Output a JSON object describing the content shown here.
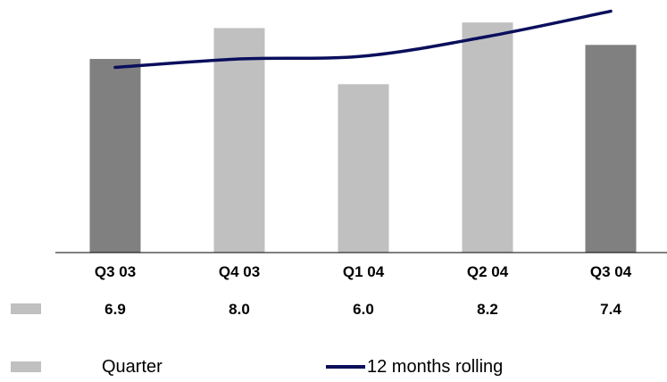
{
  "chart_data": {
    "type": "bar",
    "categories": [
      "Q3 03",
      "Q4 03",
      "Q1 04",
      "Q2 04",
      "Q3 04"
    ],
    "series": [
      {
        "name": "Quarter",
        "values": [
          6.9,
          8.0,
          6.0,
          8.2,
          7.4
        ],
        "bar_colors": [
          "#808080",
          "#c0c0c0",
          "#c0c0c0",
          "#c0c0c0",
          "#808080"
        ]
      },
      {
        "name": "12 months rolling",
        "type": "line",
        "values": [
          6.6,
          6.9,
          7.0,
          7.7,
          8.6
        ],
        "color": "#0a0f5c"
      }
    ],
    "ylim": [
      0,
      9
    ]
  },
  "legend": {
    "quarter_label": "Quarter",
    "rolling_label": "12 months rolling"
  },
  "table_row_swatch_color": "#c0c0c0"
}
